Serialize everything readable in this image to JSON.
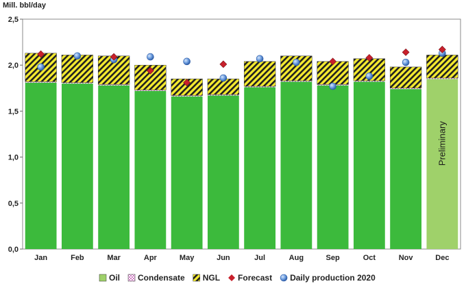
{
  "chart_data": {
    "type": "bar",
    "ylabel": "Mill. bbl/day",
    "ylim": [
      0,
      2.5
    ],
    "yticks": [
      "0,0",
      "0,5",
      "1,0",
      "1,5",
      "2,0",
      "2,5"
    ],
    "categories": [
      "Jan",
      "Feb",
      "Mar",
      "Apr",
      "May",
      "Jun",
      "Jul",
      "Aug",
      "Sep",
      "Oct",
      "Nov",
      "Dec"
    ],
    "series": [
      {
        "name": "Oil",
        "type": "bar",
        "values": [
          1.81,
          1.8,
          1.78,
          1.72,
          1.66,
          1.67,
          1.76,
          1.82,
          1.78,
          1.82,
          1.74,
          1.85
        ]
      },
      {
        "name": "Condensate",
        "type": "bar",
        "values": [
          0.01,
          0.01,
          0.01,
          0.01,
          0.01,
          0.01,
          0.01,
          0.01,
          0.01,
          0.01,
          0.01,
          0.01
        ]
      },
      {
        "name": "NGL",
        "type": "bar",
        "values": [
          0.31,
          0.3,
          0.31,
          0.27,
          0.18,
          0.17,
          0.27,
          0.27,
          0.25,
          0.24,
          0.23,
          0.25
        ]
      },
      {
        "name": "Forecast",
        "type": "marker",
        "values": [
          2.12,
          null,
          2.09,
          1.94,
          1.81,
          2.01,
          null,
          null,
          2.04,
          2.08,
          2.14,
          2.17
        ]
      },
      {
        "name": "Daily production 2020",
        "type": "marker",
        "values": [
          1.98,
          2.1,
          2.06,
          2.09,
          2.04,
          1.86,
          2.07,
          2.03,
          1.77,
          1.88,
          2.03,
          2.13
        ]
      }
    ],
    "annotations": [
      {
        "category": "Dec",
        "text": "Preliminary"
      }
    ],
    "legend_position": "bottom",
    "grid": false,
    "colors": {
      "plot_bg": "#2fb52a",
      "oil": "#3cba3c",
      "oil_preliminary": "#9fd16a",
      "condensate": "#e2a0d6",
      "ngl_fill": "#f4ea2f",
      "ngl_hatch": "#202020",
      "forecast": "#c8202c",
      "daily": "#5b8fd6",
      "axis_text": "#222222"
    }
  }
}
